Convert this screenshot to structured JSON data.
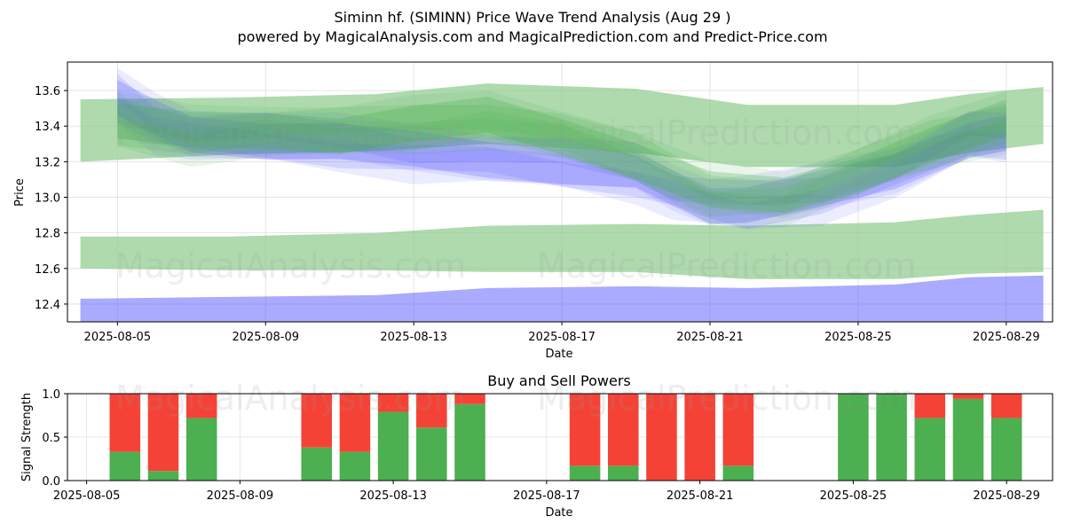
{
  "title": "Siminn hf. (SIMINN) Price Wave Trend Analysis (Aug 29 )",
  "subtitle": "powered by MagicalAnalysis.com and MagicalPrediction.com and Predict-Price.com",
  "watermarks": [
    "MagicalAnalysis.com",
    "MagicalPrediction.com"
  ],
  "colors": {
    "green": "#4caf50",
    "red": "#f44336",
    "blue": "#6464ff",
    "bandGreen": "#8fcc8f"
  },
  "chart_data": [
    {
      "type": "area",
      "title": "",
      "xlabel": "Date",
      "ylabel": "Price",
      "xlim": [
        "2025-08-04",
        "2025-08-30"
      ],
      "ylim": [
        12.3,
        13.76
      ],
      "xticks": [
        "2025-08-05",
        "2025-08-09",
        "2025-08-13",
        "2025-08-17",
        "2025-08-21",
        "2025-08-25",
        "2025-08-29"
      ],
      "yticks": [
        "12.4",
        "12.6",
        "12.8",
        "13.0",
        "13.2",
        "13.4",
        "13.6"
      ],
      "grid": true,
      "series": [
        {
          "name": "upper green band",
          "color": "green",
          "x": [
            "2025-08-04",
            "2025-08-08",
            "2025-08-12",
            "2025-08-15",
            "2025-08-19",
            "2025-08-22",
            "2025-08-26",
            "2025-08-28",
            "2025-08-30"
          ],
          "upper": [
            13.55,
            13.56,
            13.58,
            13.64,
            13.61,
            13.52,
            13.52,
            13.58,
            13.62
          ],
          "lower": [
            13.2,
            13.24,
            13.26,
            13.3,
            13.25,
            13.17,
            13.17,
            13.25,
            13.3
          ]
        },
        {
          "name": "lower green band",
          "color": "green",
          "x": [
            "2025-08-04",
            "2025-08-08",
            "2025-08-12",
            "2025-08-15",
            "2025-08-19",
            "2025-08-22",
            "2025-08-26",
            "2025-08-28",
            "2025-08-30"
          ],
          "upper": [
            12.78,
            12.78,
            12.8,
            12.84,
            12.85,
            12.84,
            12.86,
            12.9,
            12.93
          ],
          "lower": [
            12.6,
            12.59,
            12.59,
            12.58,
            12.58,
            12.54,
            12.54,
            12.57,
            12.58
          ]
        },
        {
          "name": "lower blue band",
          "color": "blue",
          "x": [
            "2025-08-04",
            "2025-08-08",
            "2025-08-12",
            "2025-08-15",
            "2025-08-19",
            "2025-08-22",
            "2025-08-26",
            "2025-08-28",
            "2025-08-30"
          ],
          "upper": [
            12.43,
            12.44,
            12.45,
            12.49,
            12.5,
            12.49,
            12.51,
            12.55,
            12.56
          ],
          "lower": [
            12.3,
            12.3,
            12.3,
            12.3,
            12.3,
            12.3,
            12.3,
            12.3,
            12.3
          ]
        },
        {
          "name": "blue wave mean",
          "color": "blue",
          "x": [
            "2025-08-05",
            "2025-08-06",
            "2025-08-07",
            "2025-08-09",
            "2025-08-11",
            "2025-08-13",
            "2025-08-15",
            "2025-08-17",
            "2025-08-19",
            "2025-08-20",
            "2025-08-21",
            "2025-08-22",
            "2025-08-24",
            "2025-08-26",
            "2025-08-28",
            "2025-08-29"
          ],
          "values": [
            13.56,
            13.42,
            13.36,
            13.34,
            13.3,
            13.25,
            13.23,
            13.19,
            13.13,
            13.04,
            12.98,
            12.96,
            13.02,
            13.15,
            13.35,
            13.35
          ]
        },
        {
          "name": "green wave mean",
          "color": "green",
          "x": [
            "2025-08-05",
            "2025-08-07",
            "2025-08-09",
            "2025-08-11",
            "2025-08-13",
            "2025-08-15",
            "2025-08-17",
            "2025-08-19",
            "2025-08-21",
            "2025-08-23",
            "2025-08-25",
            "2025-08-27",
            "2025-08-29"
          ],
          "values": [
            13.43,
            13.35,
            13.38,
            13.37,
            13.4,
            13.44,
            13.36,
            13.22,
            13.02,
            13.0,
            13.15,
            13.3,
            13.42
          ]
        }
      ]
    },
    {
      "type": "bar",
      "title": "Buy and Sell Powers",
      "xlabel": "Date",
      "ylabel": "Signal Strength",
      "ylim": [
        0,
        1
      ],
      "xlim": [
        "2025-08-04.5",
        "2025-08-30.2"
      ],
      "xticks": [
        "2025-08-05",
        "2025-08-09",
        "2025-08-13",
        "2025-08-17",
        "2025-08-21",
        "2025-08-25",
        "2025-08-29"
      ],
      "yticks": [
        "0.0",
        "0.5",
        "1.0"
      ],
      "categories": [
        "2025-08-06",
        "2025-08-07",
        "2025-08-08",
        "2025-08-11",
        "2025-08-12",
        "2025-08-13",
        "2025-08-14",
        "2025-08-15",
        "2025-08-18",
        "2025-08-19",
        "2025-08-20",
        "2025-08-21",
        "2025-08-22",
        "2025-08-25",
        "2025-08-26",
        "2025-08-27",
        "2025-08-28",
        "2025-08-29"
      ],
      "series": [
        {
          "name": "Buy",
          "color": "green",
          "values": [
            0.33,
            0.11,
            0.72,
            0.38,
            0.33,
            0.79,
            0.61,
            0.88,
            0.17,
            0.17,
            0.0,
            0.0,
            0.17,
            1.0,
            1.0,
            0.72,
            0.94,
            0.72
          ]
        },
        {
          "name": "Sell",
          "color": "red",
          "values": [
            0.67,
            0.89,
            0.28,
            0.62,
            0.67,
            0.21,
            0.39,
            0.12,
            0.83,
            0.83,
            1.0,
            1.0,
            0.83,
            0.0,
            0.0,
            0.28,
            0.06,
            0.28
          ]
        }
      ]
    }
  ]
}
